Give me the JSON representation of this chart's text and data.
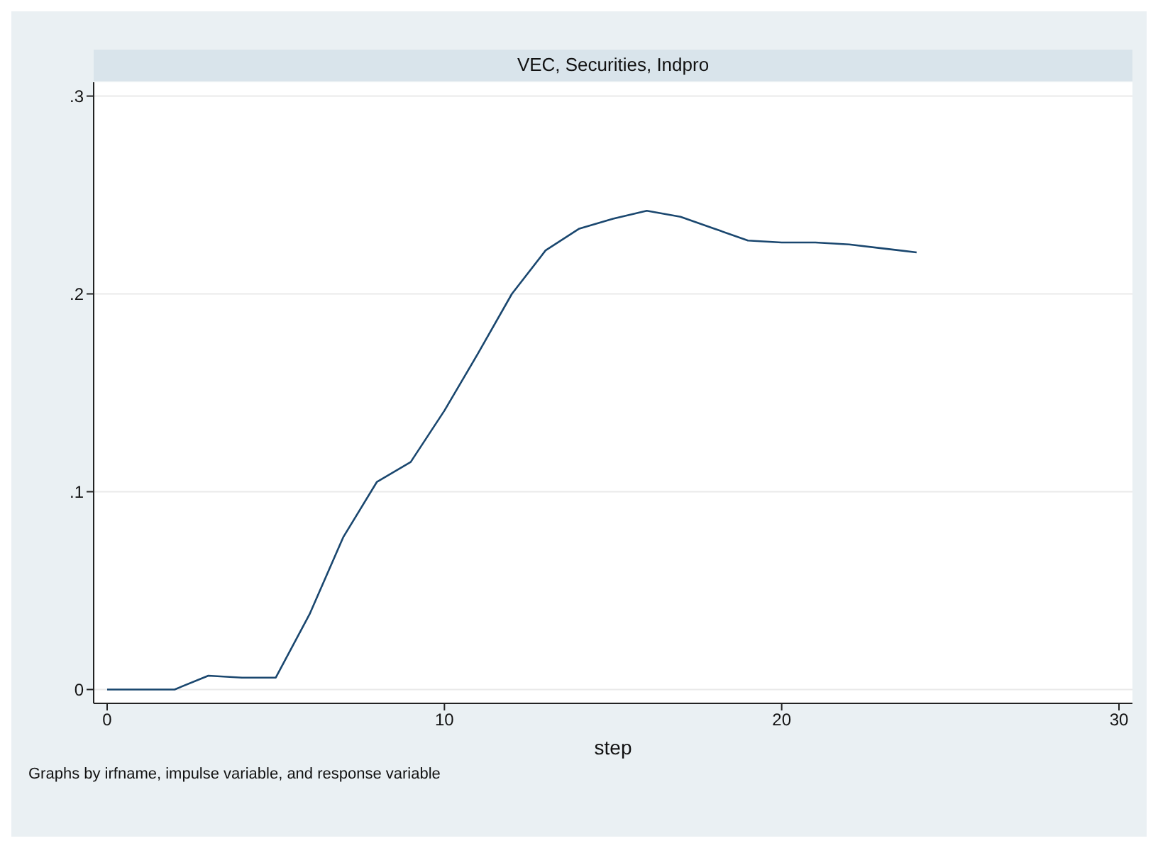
{
  "chart_data": {
    "type": "line",
    "title": "VEC, Securities, Indpro",
    "xlabel": "step",
    "annotations": [
      "Graphs by irfname, impulse variable, and response variable"
    ],
    "x": [
      0,
      1,
      2,
      3,
      4,
      5,
      6,
      7,
      8,
      9,
      10,
      11,
      12,
      13,
      14,
      15,
      16,
      17,
      18,
      19,
      20,
      21,
      22,
      23,
      24
    ],
    "series": [
      {
        "color": "#1a476f",
        "values": [
          0,
          0,
          0,
          0.007,
          0.006,
          0.006,
          0.038,
          0.077,
          0.105,
          0.115,
          0.141,
          0.17,
          0.2,
          0.222,
          0.233,
          0.238,
          0.242,
          0.239,
          0.233,
          0.227,
          0.226,
          0.226,
          0.225,
          0.223,
          0.221
        ]
      }
    ],
    "xlim": [
      -0.4,
      30.4
    ],
    "xticks": [
      0,
      10,
      20,
      30
    ],
    "ylim": [
      -0.007,
      0.307
    ],
    "yticks": [
      0,
      {
        "value": 0.1,
        "label": ".1"
      },
      {
        "value": 0.2,
        "label": ".2"
      },
      {
        "value": 0.3,
        "label": ".3"
      }
    ],
    "grid": "y",
    "marker": "none",
    "line_style": "solid",
    "legend": false
  }
}
